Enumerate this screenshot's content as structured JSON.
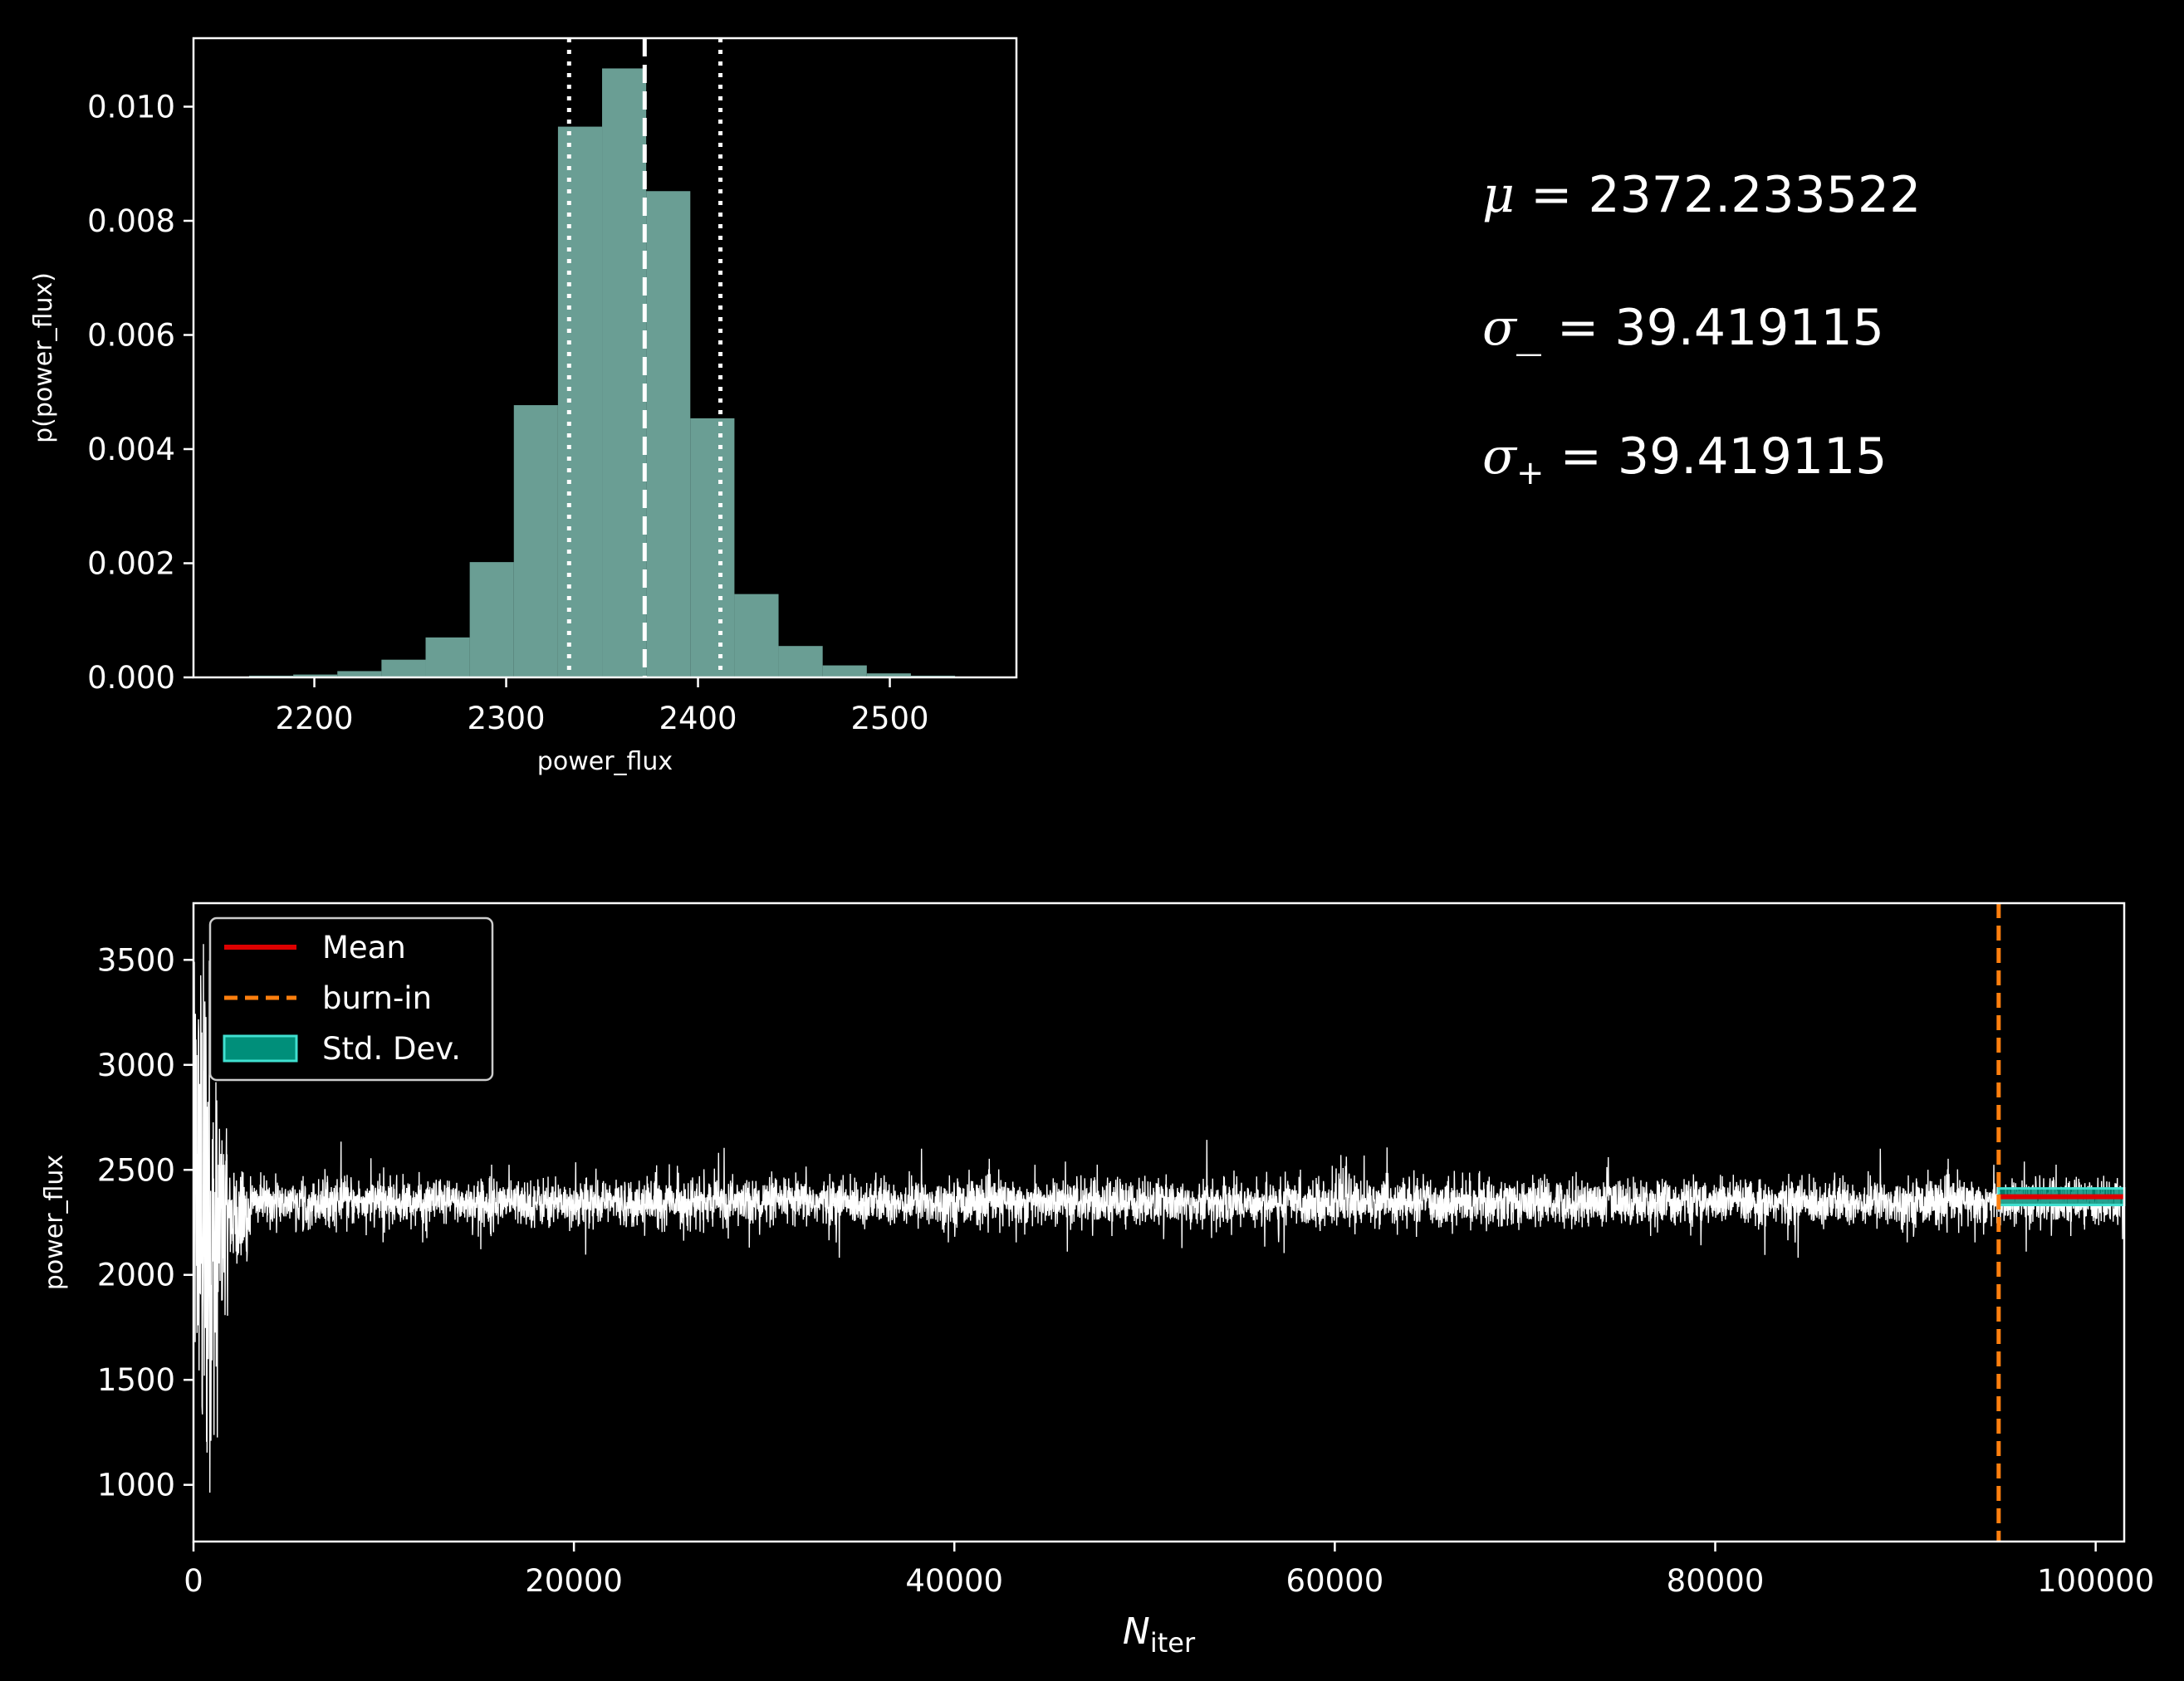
{
  "stats": {
    "mu_label": "μ",
    "mu_value": "2372.233522",
    "sigma_minus_label": "σ_",
    "sigma_minus_value": "39.419115",
    "sigma_plus_label": "σ",
    "sigma_plus_sub": "+",
    "sigma_plus_value": "39.419115",
    "equals": "="
  },
  "colors": {
    "background": "#000000",
    "hist_fill": "#6a9e94",
    "trace": "#ffffff",
    "mean": "#dd0000",
    "burnin": "#ff7f0e",
    "stddev_fill": "#008f7a",
    "stddev_edge": "#40e0d0",
    "text": "#ffffff"
  },
  "chart_data": [
    {
      "type": "bar",
      "subtype": "histogram",
      "xlabel": "power_flux",
      "ylabel": "p(power_flux)",
      "xlim": [
        2137,
        2566
      ],
      "ylim": [
        0,
        0.0112
      ],
      "xticks": [
        2200,
        2300,
        2400,
        2500
      ],
      "yticks": [
        0.0,
        0.002,
        0.004,
        0.006,
        0.008,
        0.01
      ],
      "ytick_labels": [
        "0.000",
        "0.002",
        "0.004",
        "0.006",
        "0.008",
        "0.010"
      ],
      "bin_edges": [
        2143,
        2166,
        2189,
        2212,
        2235,
        2258,
        2281,
        2304,
        2327,
        2350,
        2373,
        2396,
        2419,
        2442,
        2465,
        2488,
        2511,
        2534,
        2557
      ],
      "values": [
        1e-05,
        3e-05,
        5e-05,
        0.00011,
        0.00031,
        0.0007,
        0.00202,
        0.00477,
        0.00965,
        0.01067,
        0.00852,
        0.00454,
        0.00146,
        0.00055,
        0.00021,
        7e-05,
        3e-05,
        1e-05
      ],
      "vlines": [
        {
          "x": 2332.8,
          "style": "dotted"
        },
        {
          "x": 2372.2,
          "style": "dashed"
        },
        {
          "x": 2411.7,
          "style": "dotted"
        }
      ]
    },
    {
      "type": "line",
      "subtype": "mcmc-trace",
      "xlabel": "N",
      "xlabel_sub": "iter",
      "ylabel": "power_flux",
      "xlim": [
        0,
        101500
      ],
      "ylim": [
        730,
        3770
      ],
      "xticks": [
        0,
        20000,
        40000,
        60000,
        80000,
        100000
      ],
      "yticks": [
        1000,
        1500,
        2000,
        2500,
        3000,
        3500
      ],
      "trace_summary": {
        "n_iter": 101500,
        "steady_mean": 2345,
        "steady_halfwidth": 125,
        "early_segments": [
          {
            "x0": 0,
            "x1": 350,
            "low": 1300,
            "high": 3500
          },
          {
            "x0": 350,
            "x1": 900,
            "low": 900,
            "high": 3650
          },
          {
            "x0": 900,
            "x1": 1300,
            "low": 1200,
            "high": 3000
          },
          {
            "x0": 1300,
            "x1": 1800,
            "low": 1800,
            "high": 2700
          },
          {
            "x0": 1800,
            "x1": 3000,
            "low": 2050,
            "high": 2500
          }
        ]
      },
      "burn_in": 94900,
      "mean": 2372.2,
      "std": 39.4,
      "legend": {
        "position": "upper left",
        "entries": [
          {
            "label": "Mean",
            "kind": "line"
          },
          {
            "label": "burn-in",
            "kind": "dashed"
          },
          {
            "label": "Std. Dev.",
            "kind": "patch"
          }
        ]
      }
    }
  ]
}
